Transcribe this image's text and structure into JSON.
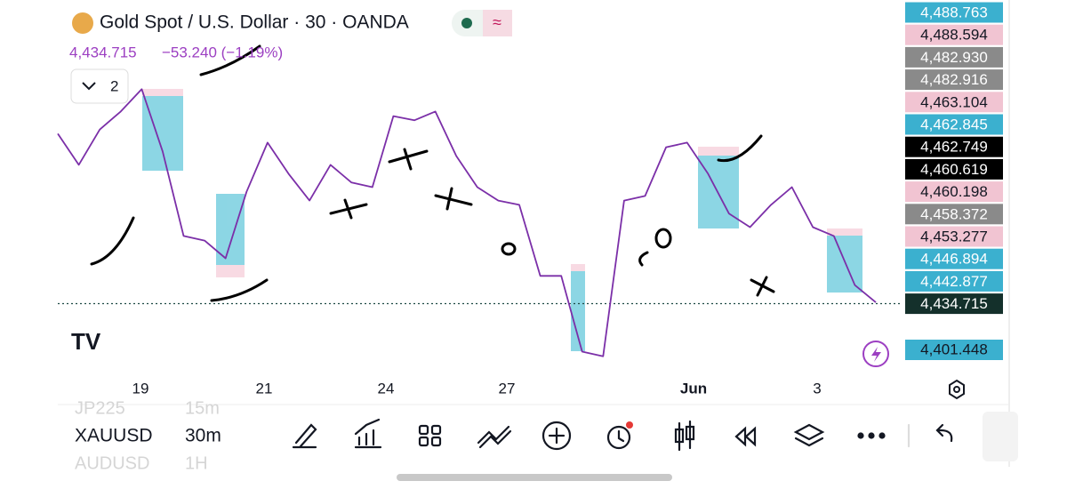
{
  "header": {
    "title": "Gold Spot / U.S. Dollar · 30 · OANDA",
    "price": "4,434.715",
    "change": "−53.240 (−1.19%)",
    "indicators": "2"
  },
  "chart": {
    "type": "line",
    "color": "#7b2fa8",
    "ylim": [
      4416,
      4505
    ],
    "values": [
      4475.1,
      4467.7,
      4476.1,
      4480.4,
      4485.7,
      4470.9,
      4450.8,
      4449.7,
      4445.5,
      4461.3,
      4473.0,
      4465.6,
      4459.2,
      4467.7,
      4463.5,
      4462.4,
      4479.3,
      4478.3,
      4480.4,
      4469.8,
      4462.4,
      4459.2,
      4458.2,
      4441.3,
      4441.3,
      4423.3,
      4422.2,
      4459.2,
      4460.3,
      4471.9,
      4473.0,
      4465.6,
      4456.1,
      4452.9,
      4458.2,
      4462.4,
      4452.9,
      4450.8,
      4439.1,
      4435.0
    ],
    "current_price": 4434.715,
    "x_labels": [
      "19",
      "21",
      "24",
      "27",
      "Jun",
      "3"
    ]
  },
  "price_labels": [
    {
      "text": "4,488.763",
      "color": "#3bb0cf"
    },
    {
      "text": "4,488.594",
      "color": "#f1c4d2"
    },
    {
      "text": "4,482.930",
      "color": "#8a8a8a"
    },
    {
      "text": "4,482.916",
      "color": "#8a8a8a"
    },
    {
      "text": "4,463.104",
      "color": "#f1c4d2"
    },
    {
      "text": "4,462.845",
      "color": "#3bb0cf"
    },
    {
      "text": "4,462.749",
      "color": "#000000"
    },
    {
      "text": "4,460.619",
      "color": "#000000"
    },
    {
      "text": "4,460.198",
      "color": "#f1c4d2"
    },
    {
      "text": "4,458.372",
      "color": "#8a8a8a"
    },
    {
      "text": "4,453.277",
      "color": "#f1c4d2"
    },
    {
      "text": "4,446.894",
      "color": "#3bb0cf"
    },
    {
      "text": "4,442.877",
      "color": "#3bb0cf"
    },
    {
      "text": "4,434.715",
      "color": "#14302b"
    }
  ],
  "alert_label": {
    "text": "4,401.448",
    "color": "#3bb0cf"
  },
  "toolbar": {
    "prev_symbol": "JP225",
    "prev_interval": "15m",
    "symbol": "XAUUSD",
    "interval": "30m",
    "next_symbol": "AUDUSD",
    "next_interval": "1H"
  }
}
